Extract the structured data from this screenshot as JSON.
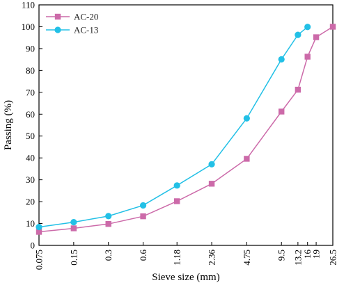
{
  "chart_data": {
    "type": "line",
    "xlabel": "Sieve size (mm)",
    "ylabel": "Passing (%)",
    "x_scale": "log",
    "x_ticks": [
      "0.075",
      "0.15",
      "0.3",
      "0.6",
      "1.18",
      "2.36",
      "4.75",
      "9.5",
      "13.2",
      "16",
      "19",
      "26.5"
    ],
    "y_ticks": [
      0,
      10,
      20,
      30,
      40,
      50,
      60,
      70,
      80,
      90,
      100,
      110
    ],
    "ylim": [
      0,
      110
    ],
    "grid": false,
    "legend_position": "top-left",
    "series": [
      {
        "name": "AC-20",
        "color": "#cc6aa9",
        "marker": "square",
        "x": [
          0.075,
          0.15,
          0.3,
          0.6,
          1.18,
          2.36,
          4.75,
          9.5,
          13.2,
          16,
          19,
          26.5
        ],
        "values": [
          6.2,
          7.8,
          9.8,
          13.3,
          20.2,
          28.2,
          39.6,
          61.2,
          71.2,
          86.3,
          95.2,
          100
        ]
      },
      {
        "name": "AC-13",
        "color": "#22c0e6",
        "marker": "circle",
        "x": [
          0.075,
          0.15,
          0.3,
          0.6,
          1.18,
          2.36,
          4.75,
          9.5,
          13.2,
          16
        ],
        "values": [
          8.4,
          10.6,
          13.4,
          18.3,
          27.4,
          37.1,
          58.1,
          85.1,
          96.3,
          99.9
        ]
      }
    ]
  }
}
